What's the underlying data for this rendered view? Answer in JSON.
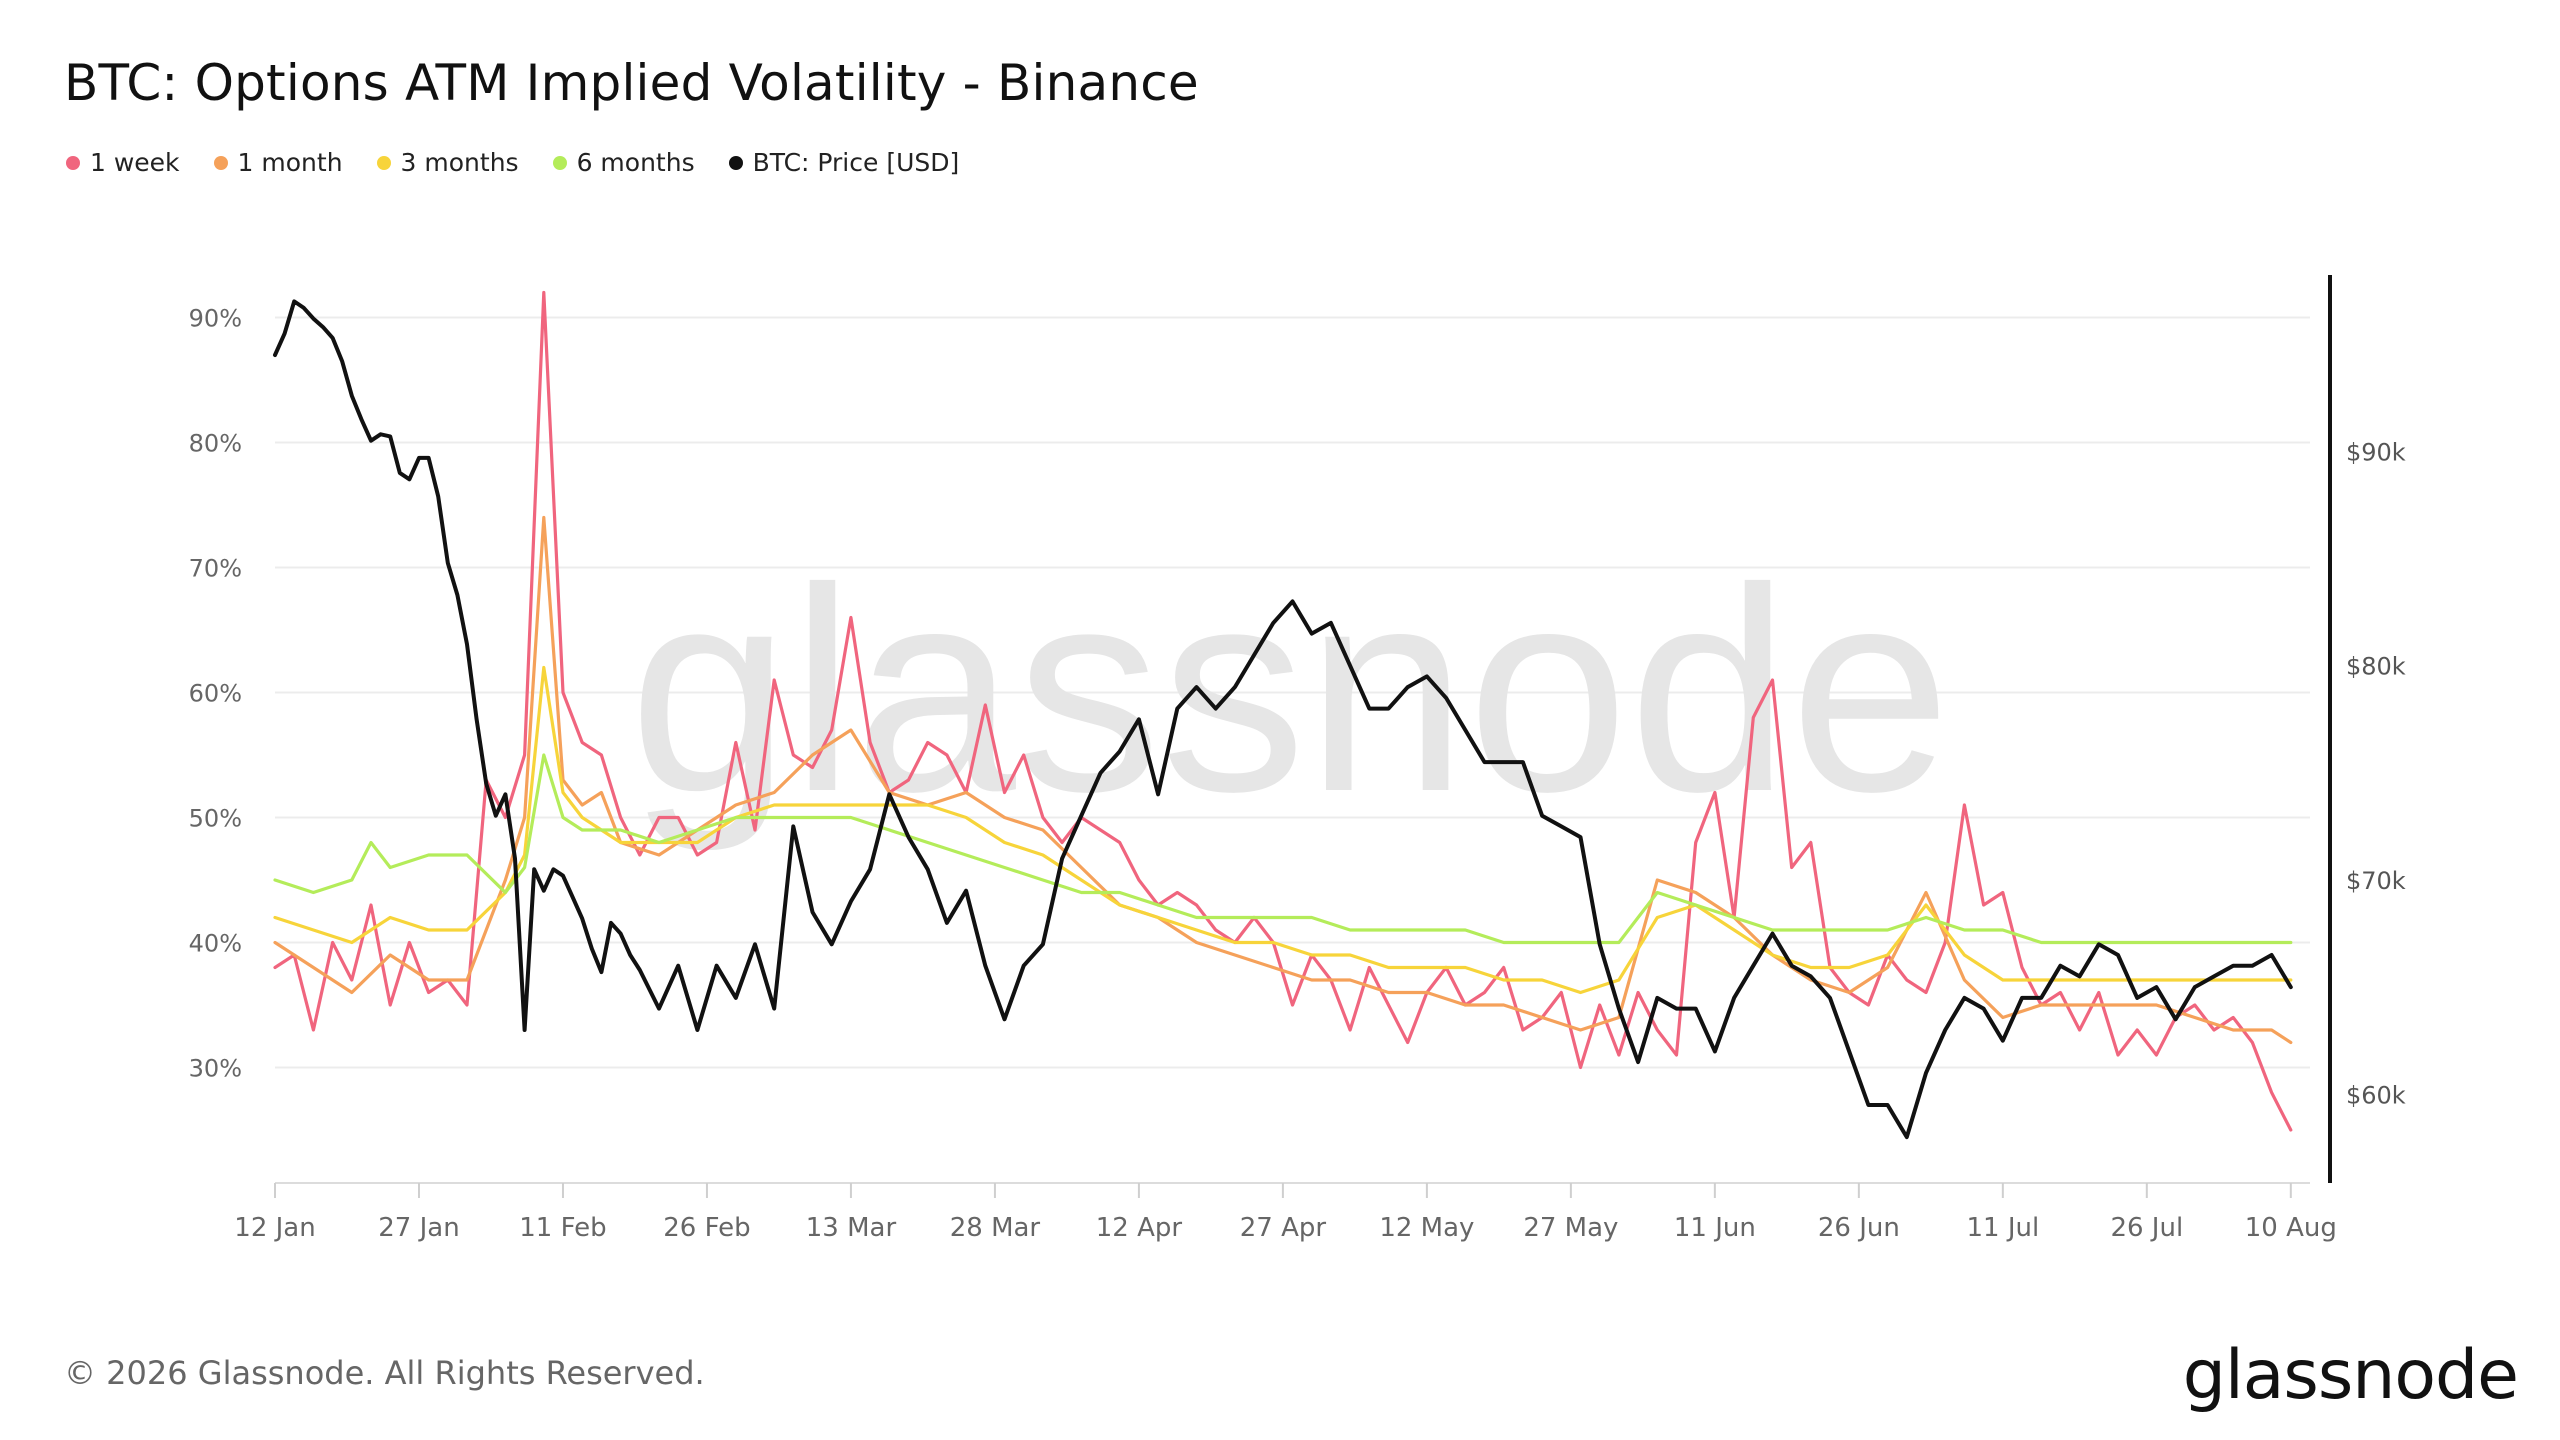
{
  "title": "BTC: Options ATM Implied Volatility - Binance",
  "legend": [
    {
      "label": "1 week",
      "color": "#f0657e"
    },
    {
      "label": "1 month",
      "color": "#f5a15a"
    },
    {
      "label": "3 months",
      "color": "#f7d43a"
    },
    {
      "label": "6 months",
      "color": "#b4ec5a"
    },
    {
      "label": "BTC: Price [USD]",
      "color": "#111111"
    }
  ],
  "watermark": "glassnode",
  "footer": "© 2026 Glassnode. All Rights Reserved.",
  "brand": "glassnode",
  "chart_data": {
    "type": "line",
    "title": "BTC: Options ATM Implied Volatility - Binance",
    "x_tick_labels": [
      "12 Jan",
      "27 Jan",
      "11 Feb",
      "26 Feb",
      "13 Mar",
      "28 Mar",
      "12 Apr",
      "27 Apr",
      "12 May",
      "27 May",
      "11 Jun",
      "26 Jun",
      "11 Jul",
      "26 Jul",
      "10 Aug"
    ],
    "x_range_days": [
      0,
      212
    ],
    "y_left": {
      "range": [
        0.21,
        0.93
      ],
      "tick_values": [
        0.3,
        0.4,
        0.5,
        0.6,
        0.7,
        0.8,
        0.9
      ],
      "tick_labels": [
        "30%",
        "40%",
        "50%",
        "60%",
        "70%",
        "80%",
        "90%"
      ]
    },
    "y_right": {
      "range": [
        56,
        98
      ],
      "tick_values": [
        60,
        70,
        80,
        90
      ],
      "tick_labels": [
        "$60k",
        "$70k",
        "$80k",
        "$90k"
      ]
    },
    "grid": true,
    "legend_position": "top-left",
    "series": [
      {
        "name": "1 week",
        "color": "#f0657e",
        "axis": "left",
        "x": [
          0,
          2,
          4,
          6,
          8,
          10,
          12,
          14,
          16,
          18,
          20,
          22,
          24,
          26,
          28,
          30,
          32,
          34,
          36,
          38,
          40,
          42,
          44,
          46,
          48,
          50,
          52,
          54,
          56,
          58,
          60,
          62,
          64,
          66,
          68,
          70,
          72,
          74,
          76,
          78,
          80,
          82,
          84,
          86,
          88,
          90,
          92,
          94,
          96,
          98,
          100,
          102,
          104,
          106,
          108,
          110,
          112,
          114,
          116,
          118,
          120,
          122,
          124,
          126,
          128,
          130,
          132,
          134,
          136,
          138,
          140,
          142,
          144,
          146,
          148,
          150,
          152,
          154,
          156,
          158,
          160,
          162,
          164,
          166,
          168,
          170,
          172,
          174,
          176,
          178,
          180,
          182,
          184,
          186,
          188,
          190,
          192,
          194,
          196,
          198,
          200,
          202,
          204,
          206,
          208,
          210
        ],
        "y": [
          0.38,
          0.39,
          0.33,
          0.4,
          0.37,
          0.43,
          0.35,
          0.4,
          0.36,
          0.37,
          0.35,
          0.53,
          0.5,
          0.55,
          0.92,
          0.6,
          0.56,
          0.55,
          0.5,
          0.47,
          0.5,
          0.5,
          0.47,
          0.48,
          0.56,
          0.49,
          0.61,
          0.55,
          0.54,
          0.57,
          0.66,
          0.56,
          0.52,
          0.53,
          0.56,
          0.55,
          0.52,
          0.59,
          0.52,
          0.55,
          0.5,
          0.48,
          0.5,
          0.49,
          0.48,
          0.45,
          0.43,
          0.44,
          0.43,
          0.41,
          0.4,
          0.42,
          0.4,
          0.35,
          0.39,
          0.37,
          0.33,
          0.38,
          0.35,
          0.32,
          0.36,
          0.38,
          0.35,
          0.36,
          0.38,
          0.33,
          0.34,
          0.36,
          0.3,
          0.35,
          0.31,
          0.36,
          0.33,
          0.31,
          0.48,
          0.52,
          0.42,
          0.58,
          0.61,
          0.46,
          0.48,
          0.38,
          0.36,
          0.35,
          0.39,
          0.37,
          0.36,
          0.4,
          0.51,
          0.43,
          0.44,
          0.38,
          0.35,
          0.36,
          0.33,
          0.36,
          0.31,
          0.33,
          0.31,
          0.34,
          0.35,
          0.33,
          0.34,
          0.32,
          0.28,
          0.25
        ]
      },
      {
        "name": "1 month",
        "color": "#f5a15a",
        "axis": "left",
        "x": [
          0,
          4,
          8,
          12,
          16,
          20,
          24,
          26,
          28,
          30,
          32,
          34,
          36,
          40,
          44,
          48,
          52,
          56,
          60,
          64,
          68,
          72,
          76,
          80,
          84,
          88,
          92,
          96,
          100,
          104,
          108,
          112,
          116,
          120,
          124,
          128,
          132,
          136,
          140,
          144,
          148,
          152,
          156,
          160,
          164,
          168,
          172,
          176,
          180,
          184,
          188,
          192,
          196,
          200,
          204,
          208,
          210
        ],
        "y": [
          0.4,
          0.38,
          0.36,
          0.39,
          0.37,
          0.37,
          0.45,
          0.5,
          0.74,
          0.53,
          0.51,
          0.52,
          0.48,
          0.47,
          0.49,
          0.51,
          0.52,
          0.55,
          0.57,
          0.52,
          0.51,
          0.52,
          0.5,
          0.49,
          0.46,
          0.43,
          0.42,
          0.4,
          0.39,
          0.38,
          0.37,
          0.37,
          0.36,
          0.36,
          0.35,
          0.35,
          0.34,
          0.33,
          0.34,
          0.45,
          0.44,
          0.42,
          0.39,
          0.37,
          0.36,
          0.38,
          0.44,
          0.37,
          0.34,
          0.35,
          0.35,
          0.35,
          0.35,
          0.34,
          0.33,
          0.33,
          0.32
        ]
      },
      {
        "name": "3 months",
        "color": "#f7d43a",
        "axis": "left",
        "x": [
          0,
          4,
          8,
          12,
          16,
          20,
          24,
          26,
          28,
          30,
          32,
          36,
          40,
          44,
          48,
          52,
          56,
          60,
          64,
          68,
          72,
          76,
          80,
          84,
          88,
          92,
          96,
          100,
          104,
          108,
          112,
          116,
          120,
          124,
          128,
          132,
          136,
          140,
          144,
          148,
          152,
          156,
          160,
          164,
          168,
          172,
          176,
          180,
          184,
          188,
          192,
          196,
          200,
          204,
          208,
          210
        ],
        "y": [
          0.42,
          0.41,
          0.4,
          0.42,
          0.41,
          0.41,
          0.44,
          0.47,
          0.62,
          0.52,
          0.5,
          0.48,
          0.48,
          0.48,
          0.5,
          0.51,
          0.51,
          0.51,
          0.51,
          0.51,
          0.5,
          0.48,
          0.47,
          0.45,
          0.43,
          0.42,
          0.41,
          0.4,
          0.4,
          0.39,
          0.39,
          0.38,
          0.38,
          0.38,
          0.37,
          0.37,
          0.36,
          0.37,
          0.42,
          0.43,
          0.41,
          0.39,
          0.38,
          0.38,
          0.39,
          0.43,
          0.39,
          0.37,
          0.37,
          0.37,
          0.37,
          0.37,
          0.37,
          0.37,
          0.37,
          0.37
        ]
      },
      {
        "name": "6 months",
        "color": "#b4ec5a",
        "axis": "left",
        "x": [
          0,
          4,
          8,
          10,
          12,
          16,
          20,
          24,
          26,
          28,
          30,
          32,
          36,
          40,
          44,
          48,
          52,
          56,
          60,
          64,
          68,
          72,
          76,
          80,
          84,
          88,
          92,
          96,
          100,
          104,
          108,
          112,
          116,
          120,
          124,
          128,
          132,
          136,
          140,
          144,
          148,
          152,
          156,
          160,
          164,
          168,
          172,
          176,
          180,
          184,
          188,
          192,
          196,
          200,
          204,
          208,
          210
        ],
        "y": [
          0.45,
          0.44,
          0.45,
          0.48,
          0.46,
          0.47,
          0.47,
          0.44,
          0.46,
          0.55,
          0.5,
          0.49,
          0.49,
          0.48,
          0.49,
          0.5,
          0.5,
          0.5,
          0.5,
          0.49,
          0.48,
          0.47,
          0.46,
          0.45,
          0.44,
          0.44,
          0.43,
          0.42,
          0.42,
          0.42,
          0.42,
          0.41,
          0.41,
          0.41,
          0.41,
          0.4,
          0.4,
          0.4,
          0.4,
          0.44,
          0.43,
          0.42,
          0.41,
          0.41,
          0.41,
          0.41,
          0.42,
          0.41,
          0.41,
          0.4,
          0.4,
          0.4,
          0.4,
          0.4,
          0.4,
          0.4,
          0.4
        ]
      },
      {
        "name": "BTC: Price [USD]",
        "color": "#111111",
        "axis": "right",
        "x": [
          0,
          1,
          2,
          3,
          4,
          5,
          6,
          7,
          8,
          9,
          10,
          11,
          12,
          13,
          14,
          15,
          16,
          17,
          18,
          19,
          20,
          21,
          22,
          23,
          24,
          25,
          26,
          27,
          28,
          29,
          30,
          31,
          32,
          33,
          34,
          35,
          36,
          37,
          38,
          40,
          42,
          44,
          46,
          48,
          50,
          52,
          54,
          56,
          58,
          60,
          62,
          64,
          66,
          68,
          70,
          72,
          74,
          76,
          78,
          80,
          82,
          84,
          86,
          88,
          90,
          92,
          94,
          96,
          98,
          100,
          102,
          104,
          106,
          108,
          110,
          112,
          114,
          116,
          118,
          120,
          122,
          124,
          126,
          128,
          130,
          132,
          134,
          136,
          138,
          140,
          142,
          144,
          146,
          148,
          150,
          152,
          154,
          156,
          158,
          160,
          162,
          164,
          166,
          168,
          170,
          172,
          174,
          176,
          178,
          180,
          182,
          184,
          186,
          188,
          190,
          192,
          194,
          196,
          198,
          200,
          202,
          204,
          206,
          208,
          210
        ],
        "y": [
          94.5,
          95.5,
          97.0,
          96.7,
          96.2,
          95.8,
          95.3,
          94.2,
          92.6,
          91.5,
          90.5,
          90.8,
          90.7,
          89.0,
          88.7,
          89.7,
          89.7,
          87.9,
          84.8,
          83.3,
          81.0,
          77.5,
          74.5,
          73.0,
          74.0,
          71.0,
          63.0,
          70.5,
          69.5,
          70.5,
          70.2,
          69.2,
          68.2,
          66.8,
          65.7,
          68.0,
          67.5,
          66.5,
          65.8,
          64.0,
          66.0,
          63.0,
          66.0,
          64.5,
          67.0,
          64.0,
          72.5,
          68.5,
          67.0,
          69.0,
          70.5,
          74.0,
          72.0,
          70.5,
          68.0,
          69.5,
          66.0,
          63.5,
          66.0,
          67.0,
          71.0,
          73.0,
          75.0,
          76.0,
          77.5,
          74.0,
          78.0,
          79.0,
          78.0,
          79.0,
          80.5,
          82.0,
          83.0,
          81.5,
          82.0,
          80.0,
          78.0,
          78.0,
          79.0,
          79.5,
          78.5,
          77.0,
          75.5,
          75.5,
          75.5,
          73.0,
          72.5,
          72.0,
          67.0,
          64.0,
          61.5,
          64.5,
          64.0,
          64.0,
          62.0,
          64.5,
          66.0,
          67.5,
          66.0,
          65.5,
          64.5,
          62.0,
          59.5,
          59.5,
          58.0,
          61.0,
          63.0,
          64.5,
          64.0,
          62.5,
          64.5,
          64.5,
          66.0,
          65.5,
          67.0,
          66.5,
          64.5,
          65.0,
          63.5,
          65.0,
          65.5,
          66.0,
          66.0,
          66.5,
          65.0
        ]
      }
    ]
  }
}
